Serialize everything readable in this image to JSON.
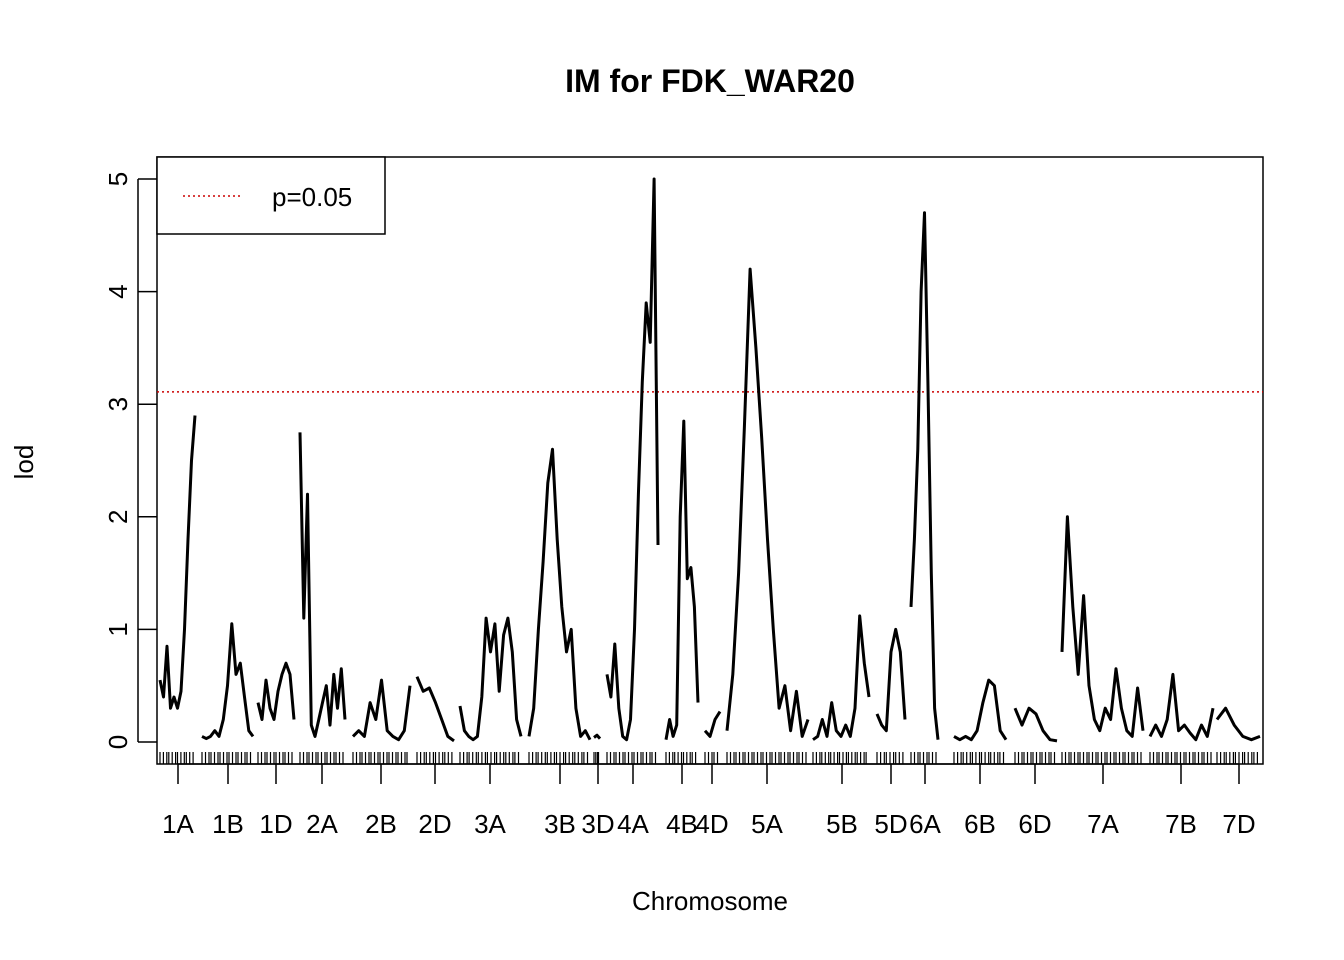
{
  "chart_data": {
    "type": "line",
    "title": "IM for FDK_WAR20",
    "xlabel": "Chromosome",
    "ylabel": "lod",
    "ylim": [
      0,
      5.2
    ],
    "y_ticks": [
      0,
      1,
      2,
      3,
      4,
      5
    ],
    "grid": false,
    "legend": {
      "placement": "top-left",
      "entries": [
        {
          "label": "p=0.05",
          "color": "#cc0000",
          "style": "dotted"
        }
      ]
    },
    "threshold": {
      "label": "p=0.05",
      "value": 3.11,
      "color": "#cc0000"
    },
    "chromosomes": [
      {
        "name": "1A",
        "lod": [
          0.55,
          0.4,
          0.85,
          0.3,
          0.4,
          0.3,
          0.45,
          1.0,
          1.8,
          2.5,
          2.9
        ]
      },
      {
        "name": "1B",
        "lod": [
          0.05,
          0.03,
          0.05,
          0.1,
          0.05,
          0.2,
          0.5,
          1.05,
          0.6,
          0.7,
          0.4,
          0.1,
          0.05
        ]
      },
      {
        "name": "1D",
        "lod": [
          0.35,
          0.2,
          0.55,
          0.3,
          0.2,
          0.45,
          0.6,
          0.7,
          0.6,
          0.2
        ]
      },
      {
        "name": "2A",
        "lod": [
          2.75,
          1.1,
          2.2,
          0.15,
          0.05,
          0.2,
          0.35,
          0.5,
          0.15,
          0.6,
          0.3,
          0.65,
          0.2
        ]
      },
      {
        "name": "2B",
        "lod": [
          0.05,
          0.1,
          0.05,
          0.35,
          0.2,
          0.55,
          0.1,
          0.05,
          0.02,
          0.1,
          0.5
        ]
      },
      {
        "name": "2D",
        "lod": [
          0.58,
          0.45,
          0.48,
          0.35,
          0.2,
          0.05,
          0.01
        ]
      },
      {
        "name": "3A",
        "lod": [
          0.32,
          0.1,
          0.05,
          0.02,
          0.05,
          0.4,
          1.1,
          0.8,
          1.05,
          0.45,
          0.95,
          1.1,
          0.8,
          0.2,
          0.05
        ]
      },
      {
        "name": "3B",
        "lod": [
          0.05,
          0.3,
          1.0,
          1.6,
          2.3,
          2.6,
          1.8,
          1.2,
          0.8,
          1.0,
          0.3,
          0.05,
          0.1,
          0.02
        ]
      },
      {
        "name": "3D",
        "lod": [
          0.04,
          0.06,
          0.03
        ]
      },
      {
        "name": "4A",
        "lod": [
          0.6,
          0.4,
          0.87,
          0.3,
          0.05,
          0.02,
          0.2,
          1.0,
          2.2,
          3.2,
          3.9,
          3.55,
          5.0,
          1.75
        ]
      },
      {
        "name": "4B",
        "lod": [
          0.02,
          0.2,
          0.05,
          0.15,
          2.0,
          2.85,
          1.45,
          1.55,
          1.2,
          0.35
        ]
      },
      {
        "name": "4D",
        "lod": [
          0.1,
          0.05,
          0.2,
          0.27
        ]
      },
      {
        "name": "5A",
        "lod": [
          0.1,
          0.6,
          1.5,
          2.8,
          4.2,
          3.5,
          2.7,
          1.8,
          1.0,
          0.3,
          0.5,
          0.1,
          0.45,
          0.05,
          0.2
        ]
      },
      {
        "name": "5B",
        "lod": [
          0.02,
          0.05,
          0.2,
          0.05,
          0.35,
          0.1,
          0.05,
          0.15,
          0.05,
          0.3,
          1.12,
          0.7,
          0.4
        ]
      },
      {
        "name": "5D",
        "lod": [
          0.25,
          0.15,
          0.1,
          0.8,
          1.0,
          0.8,
          0.2
        ]
      },
      {
        "name": "6A",
        "lod": [
          1.2,
          1.8,
          2.6,
          4.0,
          4.7,
          3.2,
          1.5,
          0.3,
          0.02
        ]
      },
      {
        "name": "6B",
        "lod": [
          0.05,
          0.02,
          0.05,
          0.02,
          0.1,
          0.35,
          0.55,
          0.5,
          0.1,
          0.02
        ]
      },
      {
        "name": "6D",
        "lod": [
          0.3,
          0.15,
          0.3,
          0.25,
          0.1,
          0.02,
          0.01
        ]
      },
      {
        "name": "7A",
        "lod": [
          0.8,
          2.0,
          1.2,
          0.6,
          1.3,
          0.5,
          0.2,
          0.1,
          0.3,
          0.2,
          0.65,
          0.3,
          0.1,
          0.05,
          0.48,
          0.1
        ]
      },
      {
        "name": "7B",
        "lod": [
          0.05,
          0.15,
          0.05,
          0.2,
          0.6,
          0.1,
          0.15,
          0.08,
          0.02,
          0.15,
          0.05,
          0.3
        ]
      },
      {
        "name": "7D",
        "lod": [
          0.2,
          0.3,
          0.15,
          0.05,
          0.02,
          0.05
        ]
      }
    ]
  }
}
